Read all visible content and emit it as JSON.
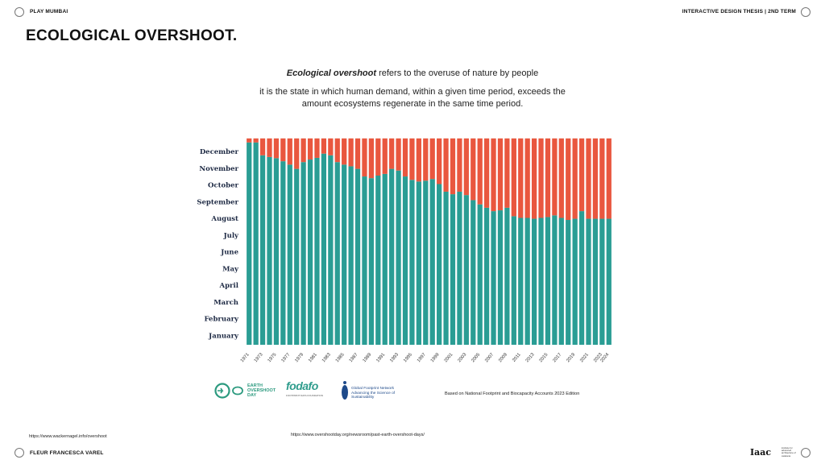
{
  "header": {
    "left_label": "PLAY MUMBAI",
    "right_label": "INTERACTIVE DESIGN THESIS | 2ND TERM"
  },
  "footer": {
    "author": "FLEUR FRANCESCA VAREL",
    "link_left": "https://www.wackernagel.info/overshoot",
    "link_center": "https://www.overshootday.org/newsroom/past-earth-overshoot-days/"
  },
  "page": {
    "title": "ECOLOGICAL OVERSHOOT.",
    "intro_bold": "Ecological overshoot",
    "intro_rest": " refers to the overuse of nature by people",
    "intro_line2": "it is the state in which human demand, within a given time period, exceeds the amount ecosystems regenerate in the same time period."
  },
  "logos": {
    "eod_line1": "EARTH",
    "eod_line2": "OVERSHOOT",
    "eod_line3": "DAY",
    "fodafo": "fodafo",
    "fodafo_sub": "FOOTPRINT DATA FOUNDATION",
    "gfn_line1": "Global Footprint Network",
    "gfn_line2": "Advancing the Science of Sustainability",
    "source_note": "Based on National Footprint and Biocapacity Accounts 2023 Edition",
    "iaac": "Iaac",
    "iaac_sub": "institute for advanced architecture of catalonia"
  },
  "colors": {
    "within_biocapacity": "#2a9d94",
    "overshoot": "#e9573f",
    "page_bg": "#ffffff"
  },
  "chart_data": {
    "type": "bar",
    "stacked": true,
    "x": [
      1971,
      1972,
      1973,
      1974,
      1975,
      1976,
      1977,
      1978,
      1979,
      1980,
      1981,
      1982,
      1983,
      1984,
      1985,
      1986,
      1987,
      1988,
      1989,
      1990,
      1991,
      1992,
      1993,
      1994,
      1995,
      1996,
      1997,
      1998,
      1999,
      2000,
      2001,
      2002,
      2003,
      2004,
      2005,
      2006,
      2007,
      2008,
      2009,
      2010,
      2011,
      2012,
      2013,
      2014,
      2015,
      2016,
      2017,
      2018,
      2019,
      2020,
      2021,
      2022,
      2023,
      2024
    ],
    "x_tick_labels": [
      "1971",
      "1973",
      "1975",
      "1977",
      "1979",
      "1981",
      "1983",
      "1985",
      "1987",
      "1989",
      "1991",
      "1993",
      "1995",
      "1997",
      "1999",
      "2001",
      "2003",
      "2005",
      "2007",
      "2009",
      "2011",
      "2013",
      "2015",
      "2017",
      "2019",
      "2021",
      "2023",
      "2024"
    ],
    "y_tick_labels": [
      "January",
      "February",
      "March",
      "April",
      "May",
      "June",
      "July",
      "August",
      "September",
      "October",
      "November",
      "December"
    ],
    "ylim": [
      0,
      12
    ],
    "series": [
      {
        "values": [
          11.96,
          11.96,
          11.2,
          11.1,
          11.03,
          10.85,
          10.65,
          10.4,
          10.8,
          10.95,
          11.05,
          11.3,
          11.2,
          10.8,
          10.65,
          10.55,
          10.4,
          9.95,
          9.85,
          10.0,
          10.1,
          10.4,
          10.3,
          9.95,
          9.75,
          9.65,
          9.7,
          9.8,
          9.5,
          9.05,
          8.9,
          9.05,
          8.85,
          8.55,
          8.3,
          8.1,
          7.9,
          7.95,
          8.1,
          7.6,
          7.5,
          7.5,
          7.45,
          7.5,
          7.55,
          7.65,
          7.5,
          7.38,
          7.45,
          7.9,
          7.45,
          7.45,
          7.45,
          7.45
        ]
      },
      {
        "values": [
          0.24,
          0.24,
          1.0,
          1.1,
          1.17,
          1.35,
          1.55,
          1.8,
          1.4,
          1.25,
          1.15,
          0.9,
          1.0,
          1.4,
          1.55,
          1.65,
          1.8,
          2.25,
          2.35,
          2.2,
          2.1,
          1.8,
          1.9,
          2.25,
          2.45,
          2.55,
          2.5,
          2.4,
          2.7,
          3.15,
          3.3,
          3.15,
          3.35,
          3.65,
          3.9,
          4.1,
          4.3,
          4.25,
          4.1,
          4.6,
          4.7,
          4.7,
          4.75,
          4.7,
          4.65,
          4.55,
          4.7,
          4.82,
          4.75,
          4.3,
          4.75,
          4.75,
          4.75,
          4.75
        ]
      }
    ],
    "legend": false,
    "grid": false
  }
}
